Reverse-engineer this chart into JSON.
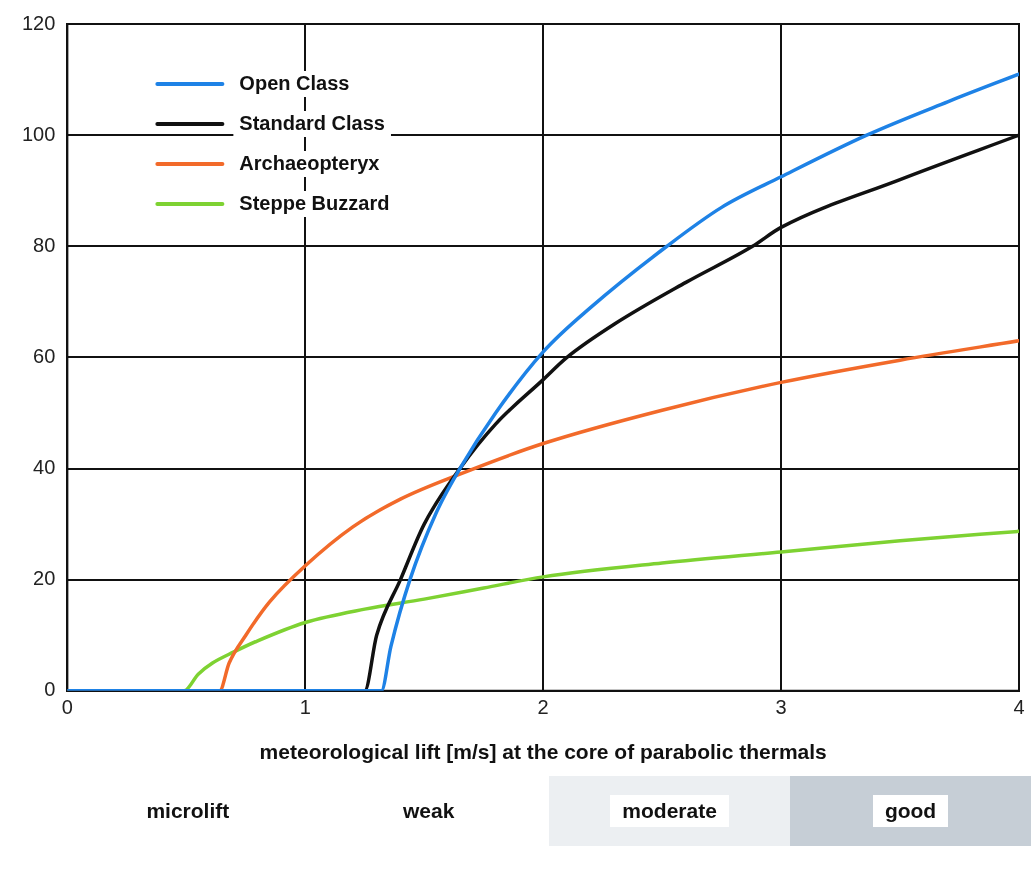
{
  "chart_data": {
    "type": "line",
    "xlabel": "meteorological lift [m/s] at the core of parabolic thermals",
    "xlim": [
      0,
      4
    ],
    "xticks": [
      0,
      1,
      2,
      3,
      4
    ],
    "ylim": [
      0,
      120
    ],
    "yticks": [
      0,
      20,
      40,
      60,
      80,
      100,
      120
    ],
    "grid": true,
    "legend": "top left",
    "marker": "none",
    "line_style": "solid",
    "series": [
      {
        "name": "Open Class",
        "color": "#1e82e6",
        "x": [
          0,
          1.32,
          1.36,
          1.44,
          1.55,
          1.65,
          1.8,
          2.0,
          2.2,
          2.52,
          2.75,
          3.0,
          3.36,
          3.7,
          4.0
        ],
        "values": [
          0,
          0,
          8,
          20,
          32,
          40,
          50,
          61,
          69,
          80,
          87,
          92.5,
          100,
          106,
          111
        ]
      },
      {
        "name": "Standard Class",
        "color": "#111111",
        "x": [
          0,
          1.25,
          1.3,
          1.4,
          1.5,
          1.65,
          1.8,
          2.0,
          2.1,
          2.3,
          2.6,
          2.88,
          3.0,
          3.5,
          4.0
        ],
        "values": [
          0,
          0,
          10,
          20,
          30,
          40,
          48,
          56,
          60,
          66,
          73.5,
          80,
          83.4,
          92,
          100
        ]
      },
      {
        "name": "Archaeopteryx",
        "color": "#f26a2a",
        "x": [
          0,
          0.64,
          0.68,
          0.75,
          0.85,
          1.0,
          1.2,
          1.4,
          1.65,
          2.0,
          2.5,
          3.0,
          3.5,
          4.0
        ],
        "values": [
          0,
          0,
          5,
          10,
          16,
          22.5,
          29.5,
          34.5,
          39,
          44.5,
          50.5,
          55.5,
          59.5,
          63
        ]
      },
      {
        "name": "Steppe Buzzard",
        "color": "#7ed232",
        "x": [
          0,
          0.49,
          0.55,
          0.61,
          0.7,
          0.8,
          1.0,
          1.25,
          1.5,
          1.75,
          2.0,
          2.5,
          3.0,
          3.5,
          4.0
        ],
        "values": [
          0,
          0,
          3,
          5,
          7,
          9,
          12.3,
          14.7,
          16.5,
          18.5,
          20.5,
          23,
          25,
          27,
          28.7
        ]
      }
    ],
    "annotations": [
      "microlift",
      "weak",
      "moderate",
      "good"
    ]
  }
}
